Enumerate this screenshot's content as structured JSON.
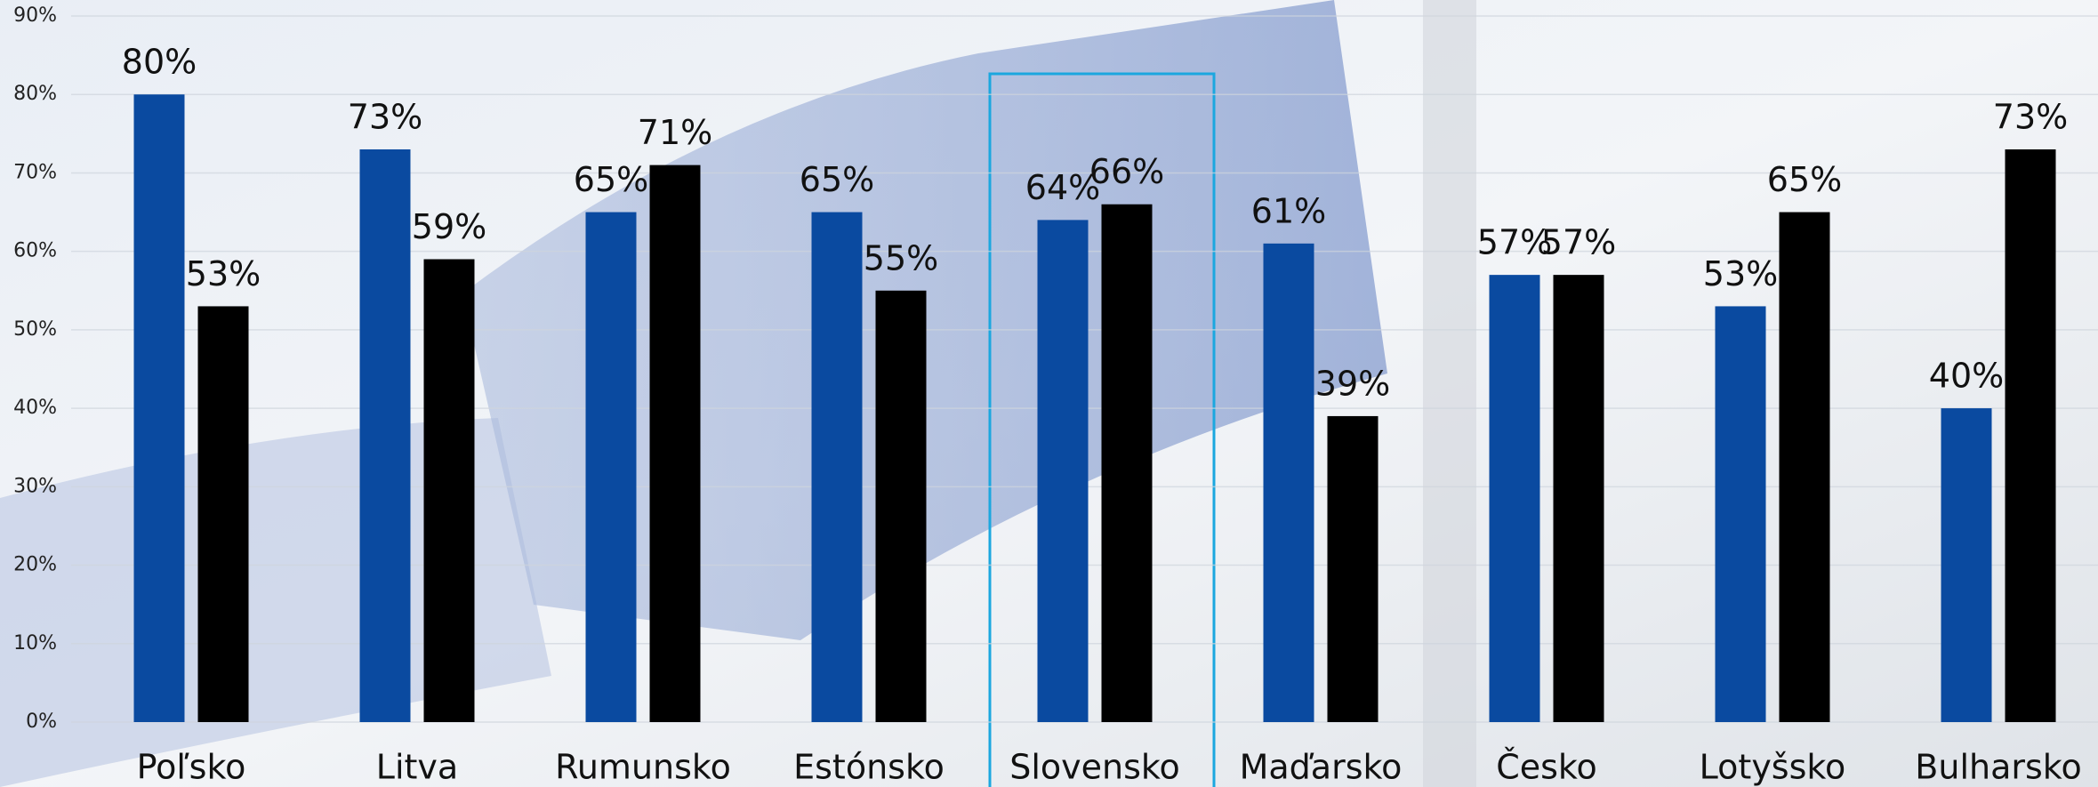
{
  "chart_data": {
    "type": "bar",
    "categories": [
      "Poľsko",
      "Litva",
      "Rumunsko",
      "Estónsko",
      "Slovensko",
      "Maďarsko",
      "Česko",
      "Lotyšsko",
      "Bulharsko"
    ],
    "series": [
      {
        "color": "#0a4aa0",
        "values": [
          80,
          73,
          65,
          65,
          64,
          61,
          57,
          53,
          40
        ],
        "value_labels": [
          "80%",
          "73%",
          "65%",
          "65%",
          "64%",
          "61%",
          "57%",
          "53%",
          "40%"
        ]
      },
      {
        "color": "#000000",
        "values": [
          53,
          59,
          71,
          55,
          66,
          39,
          57,
          65,
          73
        ],
        "value_labels": [
          "53%",
          "59%",
          "71%",
          "55%",
          "66%",
          "39%",
          "57%",
          "65%",
          "73%"
        ]
      }
    ],
    "ylim": [
      0,
      90
    ],
    "yticks": [
      {
        "value": 0,
        "label": "0%"
      },
      {
        "value": 10,
        "label": "10%"
      },
      {
        "value": 20,
        "label": "20%"
      },
      {
        "value": 30,
        "label": "30%"
      },
      {
        "value": 40,
        "label": "40%"
      },
      {
        "value": 50,
        "label": "50%"
      },
      {
        "value": 60,
        "label": "60%"
      },
      {
        "value": 70,
        "label": "70%"
      },
      {
        "value": 80,
        "label": "80%"
      },
      {
        "value": 90,
        "label": "90%"
      }
    ],
    "grid": true
  }
}
